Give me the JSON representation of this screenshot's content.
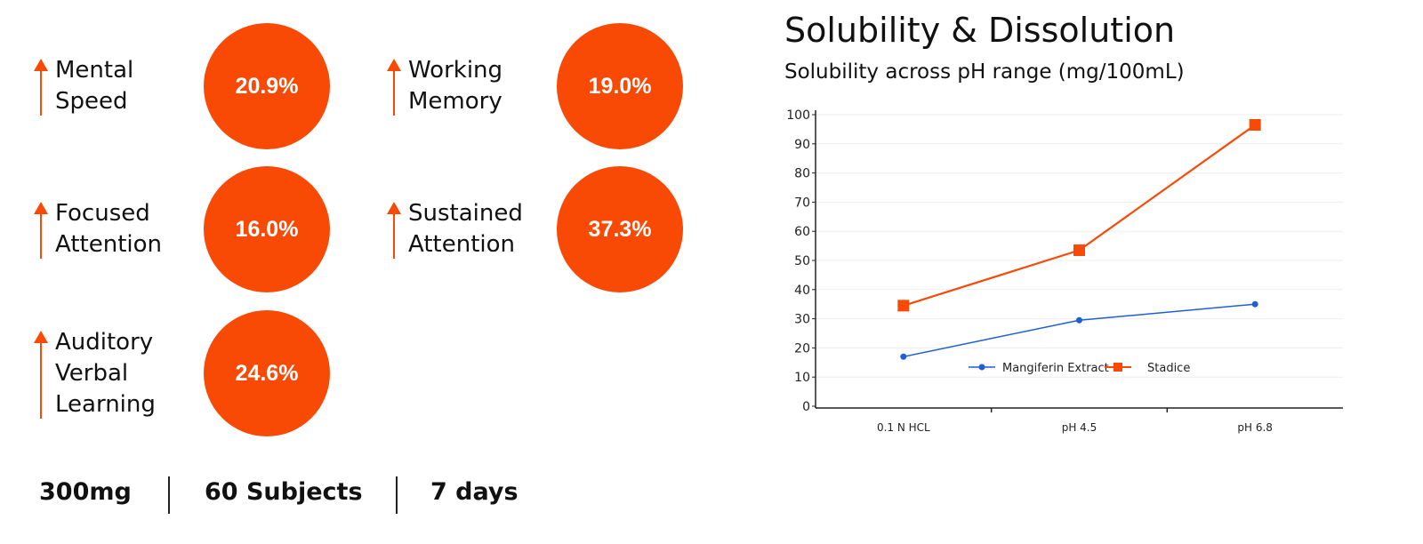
{
  "metrics": [
    {
      "label_lines": [
        "Mental",
        "Speed"
      ],
      "value": "20.9%"
    },
    {
      "label_lines": [
        "Working",
        "Memory"
      ],
      "value": "19.0%"
    },
    {
      "label_lines": [
        "Focused",
        "Attention"
      ],
      "value": "16.0%"
    },
    {
      "label_lines": [
        "Sustained",
        "Attention"
      ],
      "value": "37.3%"
    },
    {
      "label_lines": [
        "Auditory",
        "Verbal",
        "Learning"
      ],
      "value": "24.6%"
    }
  ],
  "stats": {
    "dose": "300mg",
    "subjects": "60 Subjects",
    "duration": "7 days"
  },
  "colors": {
    "accent": "#F94A05",
    "blue": "#1F5FD6"
  },
  "chart_data": {
    "type": "line",
    "title": "Solubility & Dissolution",
    "subtitle": "Solubility across pH range (mg/100mL)",
    "categories": [
      "0.1 N HCL",
      "pH 4.5",
      "pH 6.8"
    ],
    "series": [
      {
        "name": "Mangiferin Extract",
        "values": [
          17,
          29.5,
          35
        ],
        "color": "#1F5FD6",
        "marker": "circle"
      },
      {
        "name": "Stadice",
        "values": [
          34.5,
          53.5,
          96.5
        ],
        "color": "#F94A05",
        "marker": "square"
      }
    ],
    "ylim": [
      0,
      100
    ],
    "yticks": [
      "0",
      "10",
      "20",
      "30",
      "40",
      "50",
      "60",
      "70",
      "80",
      "90",
      "100"
    ],
    "grid": true,
    "legend": "bottom-right"
  }
}
